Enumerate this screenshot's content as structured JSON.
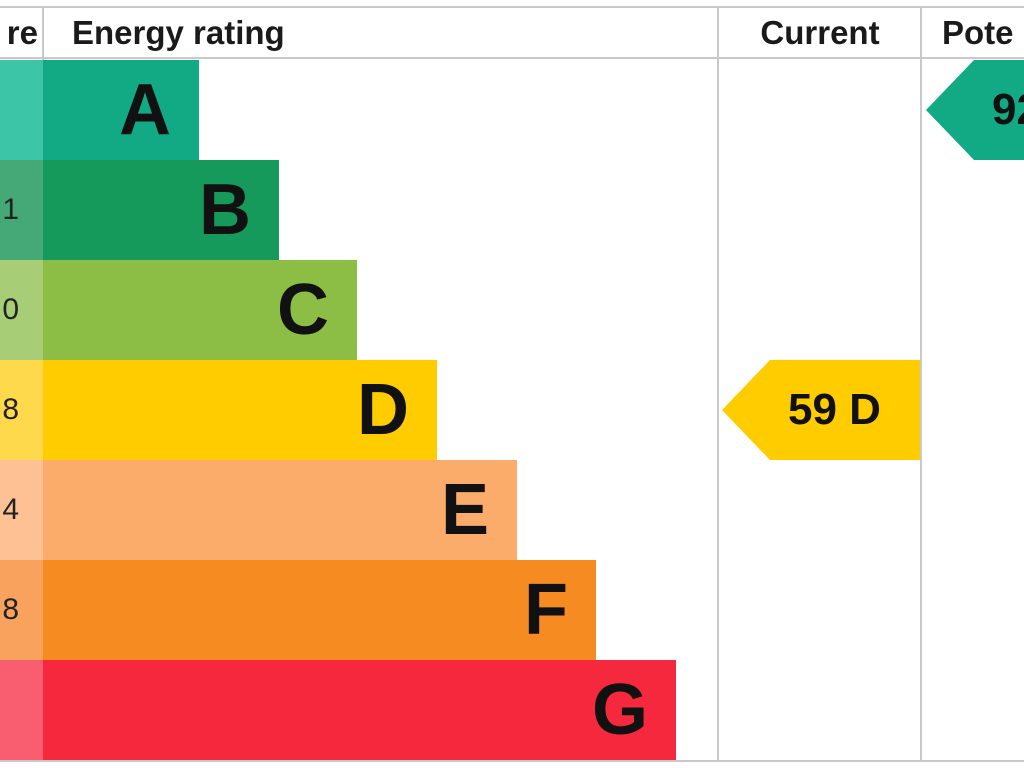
{
  "chart_data": {
    "type": "bar",
    "headers": {
      "score": "re",
      "rating": "Energy rating",
      "current": "Current",
      "potential": "Pote"
    },
    "categories": [
      "A",
      "B",
      "C",
      "D",
      "E",
      "F",
      "G"
    ],
    "score_fragments": [
      "",
      "1",
      "0",
      "8",
      "4",
      "8",
      ""
    ],
    "colors": [
      "#12a985",
      "#169a5c",
      "#8cbd45",
      "#ffcc00",
      "#fcac6a",
      "#f68b22",
      "#f5283e"
    ],
    "score_colors": [
      "#3cc5a6",
      "#45a877",
      "#a7cd77",
      "#ffd94c",
      "#fdc193",
      "#f9a25e",
      "#f85e70"
    ],
    "current": {
      "value": 59,
      "band": "D",
      "label": "59 D",
      "color": "#ffcc00"
    },
    "potential": {
      "band": "A",
      "label": "92",
      "color": "#12a985"
    }
  }
}
